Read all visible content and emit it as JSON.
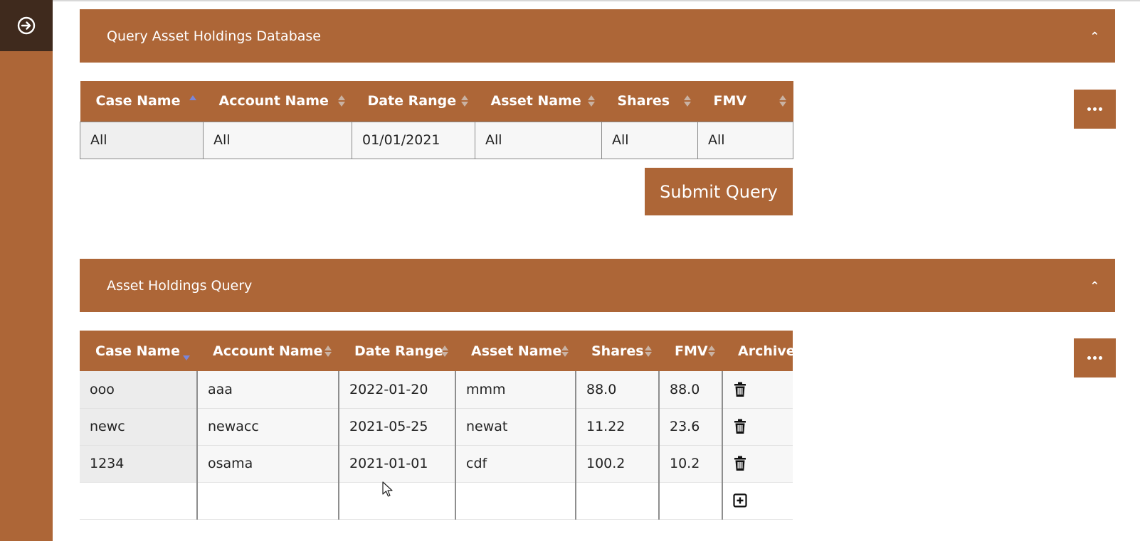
{
  "sidebar": {
    "toggle_icon": "arrow-circle-right-icon"
  },
  "query_panel": {
    "title": "Query Asset Holdings Database",
    "columns": [
      "Case Name",
      "Account Name",
      "Date Range",
      "Asset Name",
      "Shares",
      "FMV"
    ],
    "filters": [
      "All",
      "All",
      "01/01/2021",
      "All",
      "All",
      "All"
    ],
    "submit_label": "Submit Query"
  },
  "results_panel": {
    "title": "Asset Holdings Query",
    "columns": [
      "Case Name",
      "Account Name",
      "Date Range",
      "Asset Name",
      "Shares",
      "FMV",
      "Archive"
    ],
    "rows": [
      [
        "ooo",
        "aaa",
        "2022-01-20",
        "mmm",
        "88.0",
        "88.0"
      ],
      [
        "newc",
        "newacc",
        "2021-05-25",
        "newat",
        "11.22",
        "23.6"
      ],
      [
        "1234",
        "osama",
        "2021-01-01",
        "cdf",
        "100.2",
        "10.2"
      ]
    ]
  },
  "colors": {
    "accent": "#ad6637",
    "sidebar_top": "#3f2a1d"
  }
}
